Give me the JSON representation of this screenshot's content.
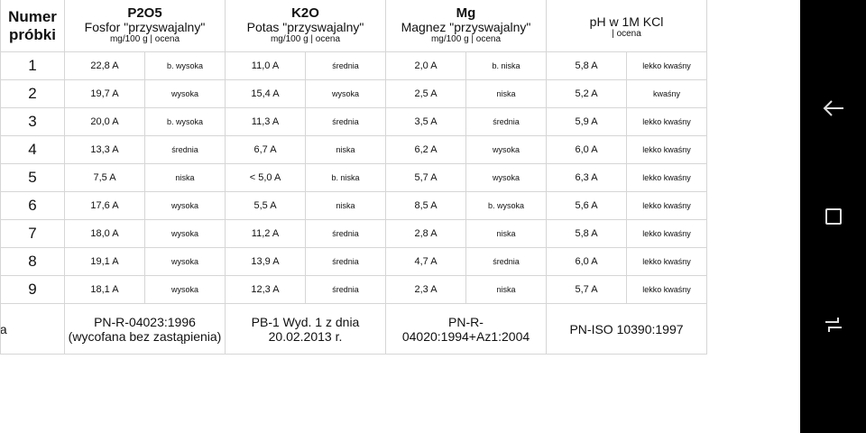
{
  "header": {
    "sample": [
      "Numer",
      "próbki"
    ],
    "columns": [
      {
        "title": "P2O5",
        "subtitle": "Fosfor \"przyswajalny\"",
        "units": "mg/100 g | ocena"
      },
      {
        "title": "K2O",
        "subtitle": "Potas \"przyswajalny\"",
        "units": "mg/100 g | ocena"
      },
      {
        "title": "Mg",
        "subtitle": "Magnez \"przyswajalny\"",
        "units": "mg/100 g | ocena"
      },
      {
        "title": "",
        "subtitle": "pH w 1M KCl",
        "units": "| ocena"
      }
    ]
  },
  "rows": [
    [
      "1",
      "22,8 A",
      "b. wysoka",
      "11,0 A",
      "średnia",
      "2,0 A",
      "b. niska",
      "5,8 A",
      "lekko kwaśny"
    ],
    [
      "2",
      "19,7 A",
      "wysoka",
      "15,4 A",
      "wysoka",
      "2,5 A",
      "niska",
      "5,2 A",
      "kwaśny"
    ],
    [
      "3",
      "20,0 A",
      "b. wysoka",
      "11,3 A",
      "średnia",
      "3,5 A",
      "średnia",
      "5,9 A",
      "lekko kwaśny"
    ],
    [
      "4",
      "13,3 A",
      "średnia",
      "6,7 A",
      "niska",
      "6,2 A",
      "wysoka",
      "6,0 A",
      "lekko kwaśny"
    ],
    [
      "5",
      "7,5 A",
      "niska",
      "< 5,0 A",
      "b. niska",
      "5,7 A",
      "wysoka",
      "6,3 A",
      "lekko kwaśny"
    ],
    [
      "6",
      "17,6 A",
      "wysoka",
      "5,5 A",
      "niska",
      "8,5 A",
      "b. wysoka",
      "5,6 A",
      "lekko kwaśny"
    ],
    [
      "7",
      "18,0 A",
      "wysoka",
      "11,2 A",
      "średnia",
      "2,8 A",
      "niska",
      "5,8 A",
      "lekko kwaśny"
    ],
    [
      "8",
      "19,1 A",
      "wysoka",
      "13,9 A",
      "średnia",
      "4,7 A",
      "średnia",
      "6,0 A",
      "lekko kwaśny"
    ],
    [
      "9",
      "18,1 A",
      "wysoka",
      "12,3 A",
      "średnia",
      "2,3 A",
      "niska",
      "5,7 A",
      "lekko kwaśny"
    ]
  ],
  "footer": [
    "nia",
    "PN-R-04023:1996 (wycofana bez zastąpienia)",
    "PB-1 Wyd. 1 z dnia 20.02.2013 r.",
    "PN-R-04020:1994+Az1:2004",
    "PN-ISO 10390:1997"
  ],
  "nav": {
    "icons": [
      "back-icon",
      "home-square-icon",
      "recents-icon"
    ]
  }
}
